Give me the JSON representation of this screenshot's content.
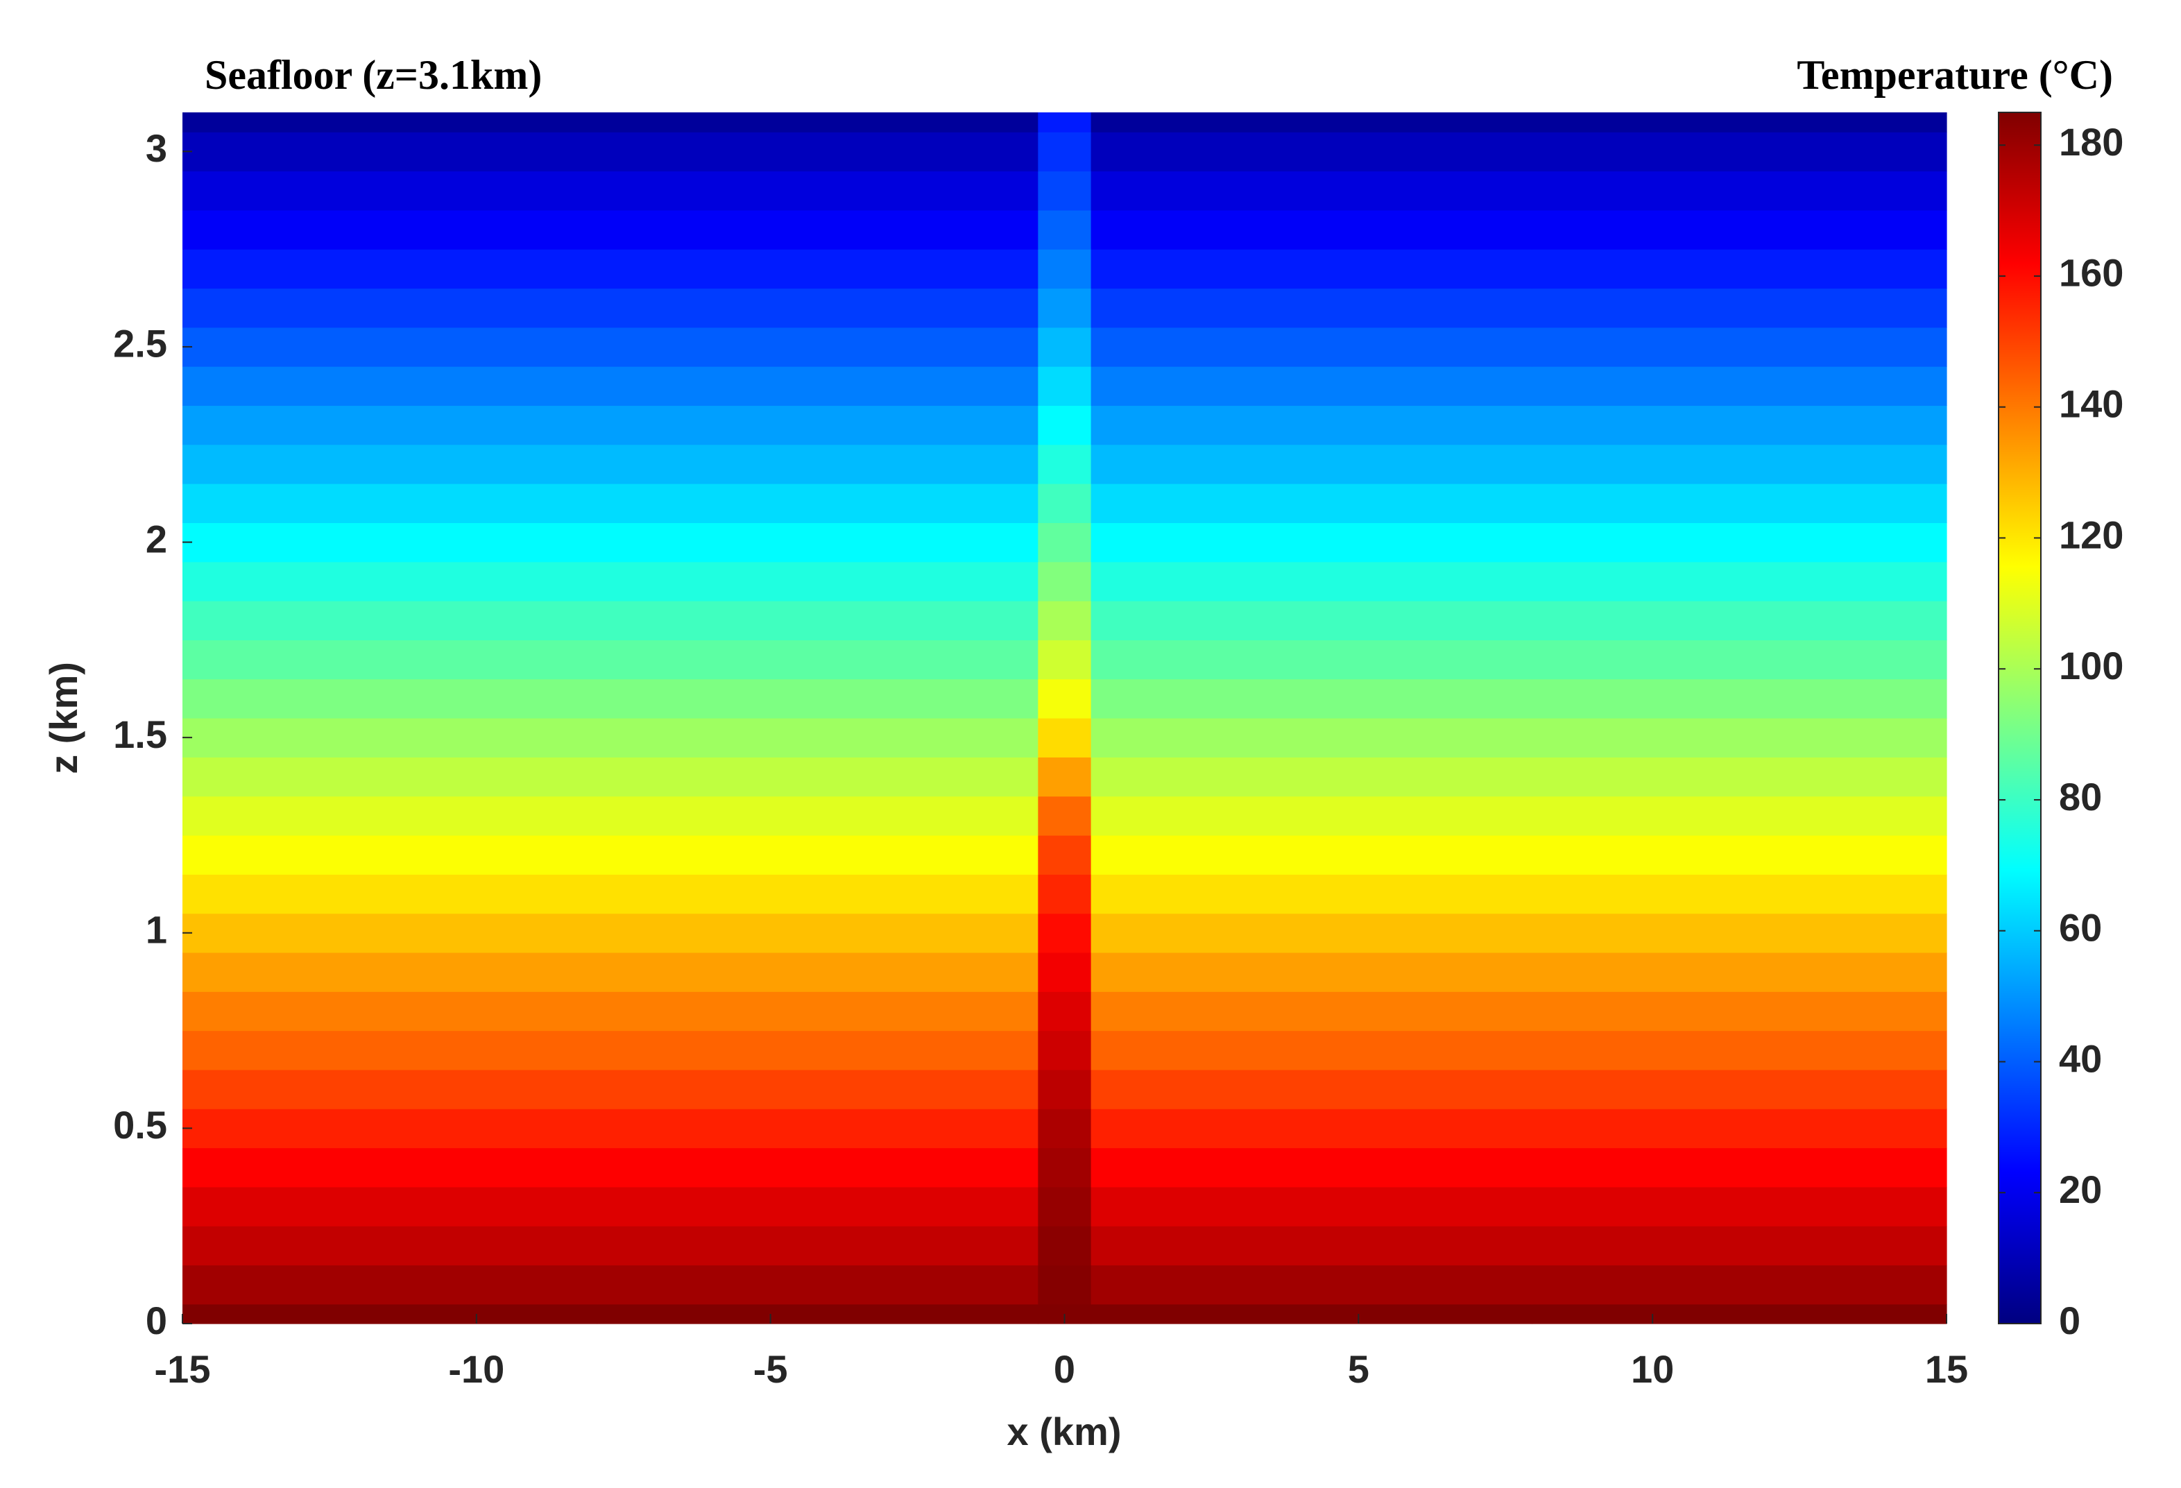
{
  "chart_data": {
    "type": "heatmap",
    "title": "Seafloor  (z=3.1km)",
    "colorbar_label": "Temperature (°C)",
    "x_label": "x (km)",
    "y_label": "z (km)",
    "colormap": "jet",
    "x": [
      -15,
      -0.9,
      0,
      0.9,
      15
    ],
    "y": [
      0,
      0.1,
      0.2,
      0.3,
      0.4,
      0.5,
      0.6,
      0.7,
      0.8,
      0.9,
      1,
      1.1,
      1.2,
      1.3,
      1.4,
      1.5,
      1.6,
      1.7,
      1.8,
      1.9,
      2,
      2.1,
      2.2,
      2.3,
      2.4,
      2.5,
      2.6,
      2.7,
      2.8,
      2.9,
      3,
      3.1
    ],
    "values": [
      [
        185,
        185,
        185,
        185,
        185
      ],
      [
        179,
        179,
        184,
        179,
        179
      ],
      [
        173,
        173,
        183,
        173,
        173
      ],
      [
        168,
        168,
        181,
        168,
        168
      ],
      [
        162,
        162,
        179,
        162,
        162
      ],
      [
        156,
        156,
        177,
        156,
        156
      ],
      [
        150,
        150,
        174,
        150,
        150
      ],
      [
        144,
        144,
        171,
        144,
        144
      ],
      [
        139,
        139,
        168,
        139,
        139
      ],
      [
        133,
        133,
        164,
        133,
        133
      ],
      [
        127,
        127,
        160,
        127,
        127
      ],
      [
        121,
        121,
        155,
        121,
        121
      ],
      [
        115,
        115,
        150,
        115,
        115
      ],
      [
        110,
        110,
        143,
        110,
        110
      ],
      [
        104,
        104,
        133,
        104,
        104
      ],
      [
        98,
        98,
        122,
        98,
        98
      ],
      [
        92,
        92,
        114,
        92,
        92
      ],
      [
        86,
        86,
        107,
        86,
        86
      ],
      [
        81,
        81,
        100,
        81,
        81
      ],
      [
        75,
        75,
        93,
        75,
        75
      ],
      [
        69,
        69,
        87,
        69,
        69
      ],
      [
        63,
        63,
        81,
        63,
        63
      ],
      [
        57,
        57,
        75,
        57,
        57
      ],
      [
        52,
        52,
        69,
        52,
        52
      ],
      [
        46,
        46,
        63,
        46,
        46
      ],
      [
        40,
        40,
        57,
        40,
        40
      ],
      [
        34,
        34,
        51,
        34,
        34
      ],
      [
        28,
        28,
        46,
        28,
        28
      ],
      [
        22,
        22,
        41,
        22,
        22
      ],
      [
        17,
        17,
        36,
        17,
        17
      ],
      [
        11,
        11,
        32,
        11,
        11
      ],
      [
        5,
        5,
        28,
        5,
        5
      ]
    ],
    "xlim": [
      -15,
      15
    ],
    "ylim": [
      0,
      3.1
    ],
    "xticks": [
      -15,
      -10,
      -5,
      0,
      5,
      10,
      15
    ],
    "yticks": [
      0,
      0.5,
      1,
      1.5,
      2,
      2.5,
      3
    ],
    "clim": [
      0,
      185
    ],
    "cticks": [
      0,
      20,
      40,
      60,
      80,
      100,
      120,
      140,
      160,
      180
    ]
  }
}
